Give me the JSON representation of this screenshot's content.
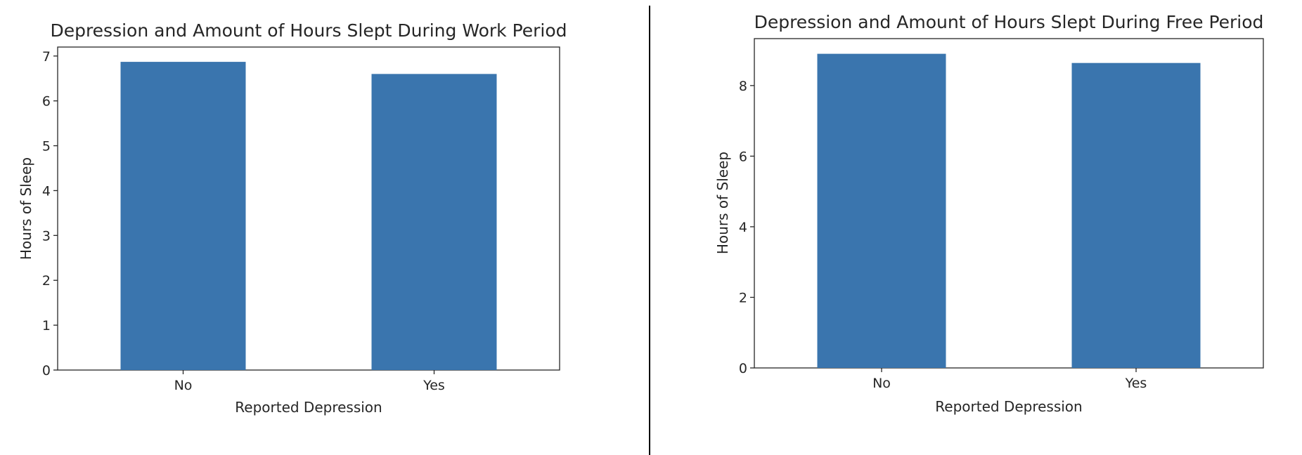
{
  "colors": {
    "bar": "#3a75ae",
    "axis": "#262626",
    "divider": "#000000",
    "background": "#ffffff"
  },
  "chart_data": [
    {
      "type": "bar",
      "title": "Depression and Amount of Hours Slept During Work Period",
      "xlabel": "Reported Depression",
      "ylabel": "Hours of Sleep",
      "categories": [
        "No",
        "Yes"
      ],
      "values": [
        6.87,
        6.6
      ],
      "ylim": [
        0,
        7.2
      ],
      "yticks": [
        0,
        1,
        2,
        3,
        4,
        5,
        6,
        7
      ],
      "grid": false,
      "legend": "none"
    },
    {
      "type": "bar",
      "title": "Depression and Amount of Hours Slept During Free Period",
      "xlabel": "Reported Depression",
      "ylabel": "Hours of Sleep",
      "categories": [
        "No",
        "Yes"
      ],
      "values": [
        8.9,
        8.64
      ],
      "ylim": [
        0,
        9.33
      ],
      "yticks": [
        0,
        2,
        4,
        6,
        8
      ],
      "grid": false,
      "legend": "none"
    }
  ]
}
